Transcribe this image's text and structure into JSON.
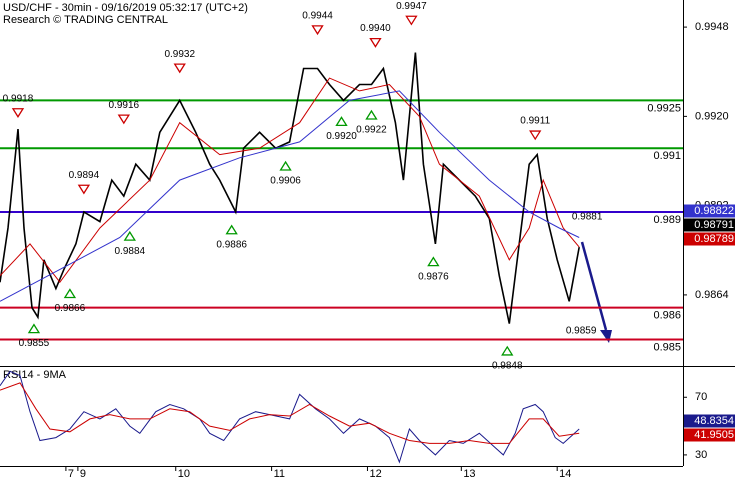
{
  "chart_data": [
    {
      "type": "line",
      "title": "USD/CHF - 30min - 09/16/2019 05:32:17 (UTC+2)",
      "subtitle": "Research © TRADING CENTRAL",
      "xlim": [
        0,
        342
      ],
      "ylim": [
        0.98417,
        0.99565
      ],
      "yticks": [
        0.9948,
        {
          "value": 0.992,
          "label": "0.9920"
        },
        0.9892,
        0.9864
      ],
      "series": [
        {
          "color": "#000000",
          "x": [
            0,
            4,
            9,
            12,
            16,
            19,
            22,
            28,
            32,
            38,
            42,
            50,
            56,
            62,
            68,
            75,
            80,
            90,
            98,
            105,
            110,
            118,
            122,
            130,
            138,
            145,
            152,
            159,
            165,
            172,
            180,
            186,
            192,
            198,
            202,
            208,
            212,
            218,
            222,
            230,
            238,
            245,
            250,
            255,
            260,
            265,
            269,
            274,
            279,
            285,
            290
          ],
          "values": [
            0.9868,
            0.9885,
            0.9916,
            0.9885,
            0.986,
            0.9857,
            0.9875,
            0.9866,
            0.9872,
            0.988,
            0.989,
            0.9887,
            0.99,
            0.9895,
            0.9905,
            0.99,
            0.9915,
            0.9925,
            0.9915,
            0.9905,
            0.99,
            0.989,
            0.991,
            0.9915,
            0.991,
            0.9912,
            0.9935,
            0.9935,
            0.993,
            0.9925,
            0.993,
            0.993,
            0.9935,
            0.9918,
            0.99,
            0.994,
            0.9905,
            0.988,
            0.9905,
            0.99,
            0.9895,
            0.9888,
            0.987,
            0.9855,
            0.988,
            0.9905,
            0.9908,
            0.9888,
            0.9875,
            0.9862,
            0.9879
          ]
        },
        {
          "color": "#cc0000",
          "x": [
            0,
            15,
            30,
            50,
            75,
            90,
            110,
            130,
            150,
            165,
            180,
            195,
            210,
            220,
            240,
            255,
            265,
            272,
            282,
            290
          ],
          "values": [
            0.987,
            0.988,
            0.9868,
            0.9885,
            0.99,
            0.9918,
            0.9908,
            0.991,
            0.9918,
            0.9932,
            0.9928,
            0.993,
            0.992,
            0.9905,
            0.9895,
            0.9875,
            0.9885,
            0.99,
            0.9885,
            0.9879
          ]
        },
        {
          "color": "#3333cc",
          "x": [
            0,
            30,
            60,
            90,
            120,
            150,
            175,
            200,
            220,
            245,
            265,
            280,
            290
          ],
          "values": [
            0.9862,
            0.9872,
            0.9882,
            0.99,
            0.9907,
            0.9912,
            0.9925,
            0.9928,
            0.9915,
            0.99,
            0.989,
            0.9885,
            0.9882
          ]
        }
      ],
      "levels": [
        {
          "value": 0.9925,
          "color": "#009900"
        },
        {
          "value": 0.991,
          "color": "#009900"
        },
        {
          "value": 0.989,
          "color": "#3300cc"
        },
        {
          "value": 0.986,
          "color": "#cc0022"
        },
        {
          "value": 0.985,
          "color": "#cc0022"
        }
      ],
      "annotations": [
        {
          "x": 9,
          "value": 0.9918,
          "label": "0.9918",
          "side": "above",
          "marker": true
        },
        {
          "x": 42,
          "value": 0.9894,
          "label": "0.9894",
          "side": "above",
          "marker": true
        },
        {
          "x": 62,
          "value": 0.9916,
          "label": "0.9916",
          "side": "above",
          "marker": true
        },
        {
          "x": 90,
          "value": 0.9932,
          "label": "0.9932",
          "side": "above",
          "marker": true
        },
        {
          "x": 159,
          "value": 0.9944,
          "label": "0.9944",
          "side": "above",
          "marker": true
        },
        {
          "x": 188,
          "value": 0.994,
          "label": "0.9940",
          "side": "above",
          "marker": true
        },
        {
          "x": 206,
          "value": 0.9947,
          "label": "0.9947",
          "side": "above",
          "marker": true
        },
        {
          "x": 268,
          "value": 0.9911,
          "label": "0.9911",
          "side": "above",
          "marker": true
        },
        {
          "x": 294,
          "value": 0.9881,
          "label": "0.9881",
          "side": "above",
          "marker": false
        },
        {
          "x": 17,
          "value": 0.9855,
          "label": "0.9855",
          "side": "below",
          "marker": true
        },
        {
          "x": 35,
          "value": 0.9866,
          "label": "0.9866",
          "side": "below",
          "marker": true
        },
        {
          "x": 65,
          "value": 0.9884,
          "label": "0.9884",
          "side": "below",
          "marker": true
        },
        {
          "x": 116,
          "value": 0.9886,
          "label": "0.9886",
          "side": "below",
          "marker": true
        },
        {
          "x": 143,
          "value": 0.9906,
          "label": "0.9906",
          "side": "below",
          "marker": true
        },
        {
          "x": 171,
          "value": 0.992,
          "label": "0.9920",
          "side": "below",
          "marker": true
        },
        {
          "x": 186,
          "value": 0.9922,
          "label": "0.9922",
          "side": "below",
          "marker": true
        },
        {
          "x": 217,
          "value": 0.9876,
          "label": "0.9876",
          "side": "below",
          "marker": true
        },
        {
          "x": 254,
          "value": 0.9848,
          "label": "0.9848",
          "side": "below",
          "marker": true
        },
        {
          "x": 291,
          "value": 0.9859,
          "label": "0.9859",
          "side": "below",
          "marker": false
        }
      ],
      "tags": [
        {
          "value": 0.98822,
          "color": "#3333cc"
        },
        {
          "value": 0.98791,
          "color": "#000000"
        },
        {
          "value": 0.98789,
          "color": "#cc0000"
        }
      ]
    },
    {
      "type": "line",
      "title": "RSI14 - 9MA",
      "xlim": [
        0,
        342
      ],
      "ylim": [
        22.3,
        91
      ],
      "yticks": [
        70,
        30
      ],
      "xticks": [
        {
          "value": 33,
          "label": "7"
        },
        {
          "value": 39,
          "label": "9"
        },
        {
          "value": 88,
          "label": "10"
        },
        {
          "value": 136,
          "label": "11"
        },
        {
          "value": 184,
          "label": "12"
        },
        {
          "value": 231,
          "label": "13"
        },
        {
          "value": 279,
          "label": "14"
        }
      ],
      "series": [
        {
          "color": "#1a1a8c",
          "x": [
            0,
            5,
            10,
            15,
            20,
            28,
            35,
            42,
            50,
            58,
            65,
            70,
            78,
            85,
            92,
            100,
            105,
            112,
            120,
            128,
            135,
            145,
            150,
            158,
            165,
            172,
            180,
            188,
            195,
            200,
            205,
            210,
            218,
            225,
            232,
            240,
            248,
            252,
            258,
            262,
            268,
            272,
            278,
            282,
            290
          ],
          "values": [
            78,
            88,
            85,
            60,
            40,
            42,
            48,
            60,
            55,
            62,
            50,
            45,
            60,
            65,
            62,
            55,
            45,
            40,
            55,
            60,
            58,
            55,
            72,
            62,
            55,
            45,
            55,
            50,
            42,
            25,
            48,
            40,
            30,
            40,
            38,
            45,
            35,
            30,
            45,
            62,
            65,
            60,
            42,
            38,
            48
          ]
        },
        {
          "color": "#cc0000",
          "x": [
            0,
            10,
            18,
            25,
            35,
            45,
            55,
            65,
            75,
            85,
            95,
            105,
            115,
            125,
            135,
            145,
            155,
            165,
            175,
            185,
            195,
            205,
            215,
            225,
            235,
            245,
            255,
            265,
            272,
            280,
            290
          ],
          "values": [
            75,
            80,
            62,
            48,
            46,
            55,
            58,
            55,
            55,
            62,
            60,
            50,
            47,
            55,
            58,
            57,
            65,
            57,
            50,
            52,
            45,
            40,
            38,
            38,
            40,
            38,
            38,
            55,
            55,
            43,
            45
          ]
        }
      ],
      "tags": [
        {
          "value": 48.8354,
          "color": "#1a1a8c"
        },
        {
          "value": 41.9505,
          "color": "#cc0000"
        }
      ]
    }
  ]
}
